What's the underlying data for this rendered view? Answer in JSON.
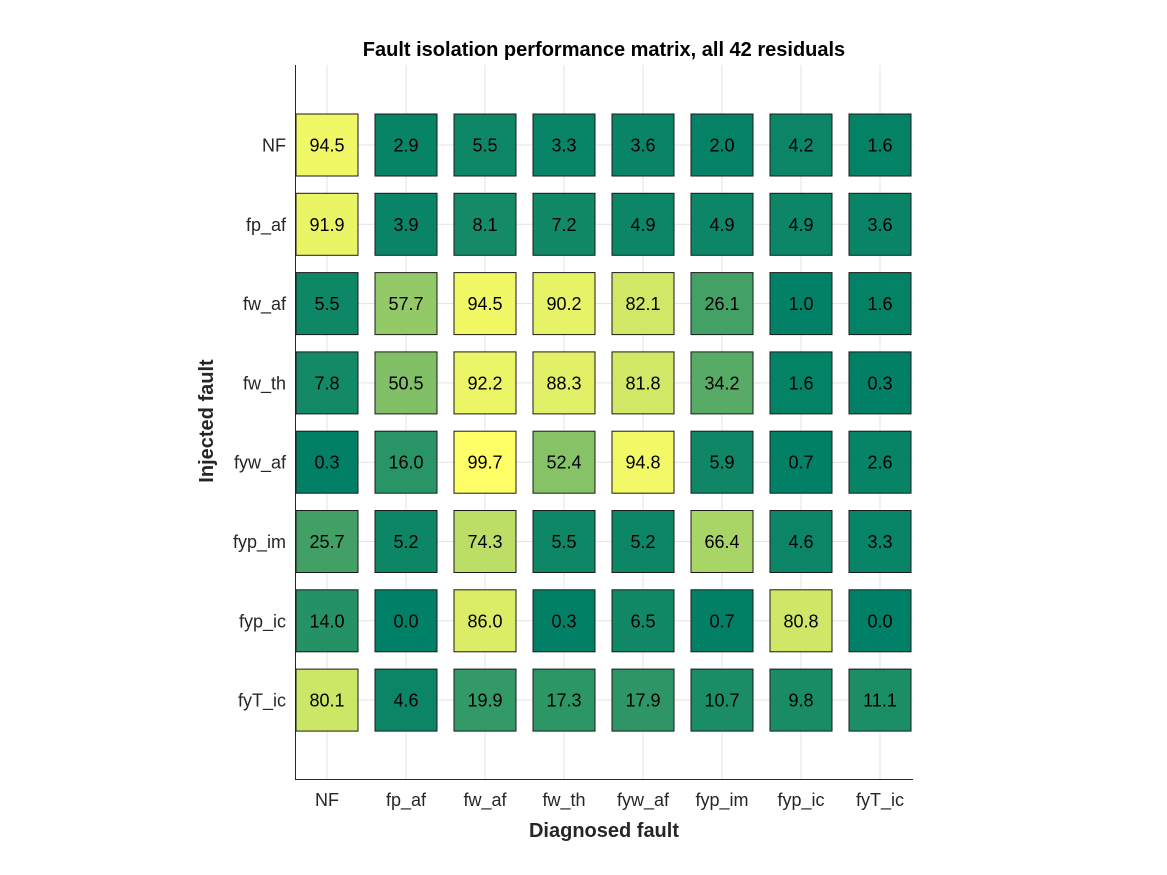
{
  "chart_data": {
    "type": "heatmap",
    "title": "Fault isolation performance matrix, all 42 residuals",
    "xlabel": "Diagnosed fault",
    "ylabel": "Injected fault",
    "x_categories": [
      "NF",
      "fp_af",
      "fw_af",
      "fw_th",
      "fyw_af",
      "fyp_im",
      "fyp_ic",
      "fyT_ic"
    ],
    "y_categories": [
      "NF",
      "fp_af",
      "fw_af",
      "fw_th",
      "fyw_af",
      "fyp_im",
      "fyp_ic",
      "fyT_ic"
    ],
    "values": [
      [
        94.5,
        2.9,
        5.5,
        3.3,
        3.6,
        2.0,
        4.2,
        1.6
      ],
      [
        91.9,
        3.9,
        8.1,
        7.2,
        4.9,
        4.9,
        4.9,
        3.6
      ],
      [
        5.5,
        57.7,
        94.5,
        90.2,
        82.1,
        26.1,
        1.0,
        1.6
      ],
      [
        7.8,
        50.5,
        92.2,
        88.3,
        81.8,
        34.2,
        1.6,
        0.3
      ],
      [
        0.3,
        16.0,
        99.7,
        52.4,
        94.8,
        5.9,
        0.7,
        2.6
      ],
      [
        25.7,
        5.2,
        74.3,
        5.5,
        5.2,
        66.4,
        4.6,
        3.3
      ],
      [
        14.0,
        0.0,
        86.0,
        0.3,
        6.5,
        0.7,
        80.8,
        0.0
      ],
      [
        80.1,
        4.6,
        19.9,
        17.3,
        17.9,
        10.7,
        9.8,
        11.1
      ]
    ],
    "value_range": [
      0,
      100
    ],
    "colormap": "summer",
    "grid": true
  }
}
